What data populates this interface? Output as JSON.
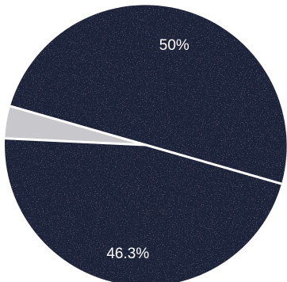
{
  "chart_data": {
    "type": "pie",
    "slices": [
      {
        "label": "50%",
        "value": 50,
        "color": "#1c2038"
      },
      {
        "label": "46.3%",
        "value": 46.3,
        "color": "#1c2038"
      },
      {
        "label": "",
        "value": 3.7,
        "color": "#c8c8cc"
      }
    ],
    "separator_color": "#ffffff",
    "legend": "none"
  }
}
